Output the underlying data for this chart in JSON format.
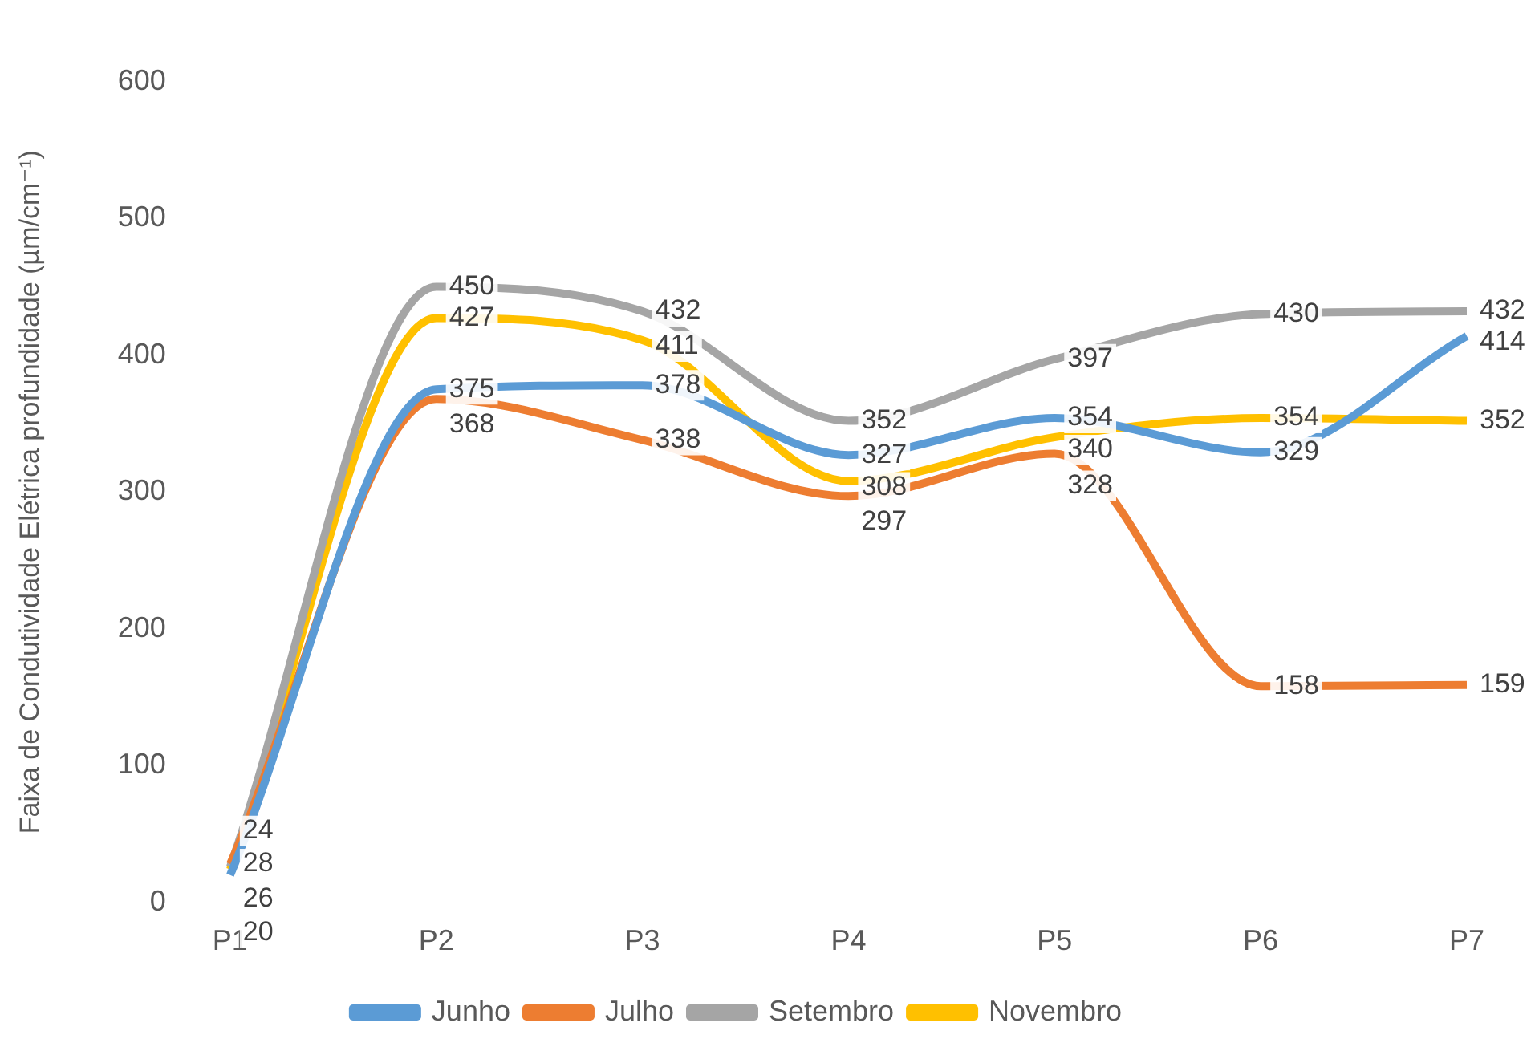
{
  "chart_data": {
    "type": "line",
    "ylabel": "Faixa de Condutividade Elétrica profundidade (µm/cm⁻¹)",
    "categories": [
      "P1",
      "P2",
      "P3",
      "P4",
      "P5",
      "P6",
      "P7"
    ],
    "series": [
      {
        "name": "Junho",
        "color": "#5b9bd5",
        "values": [
          20,
          375,
          378,
          327,
          354,
          329,
          414
        ]
      },
      {
        "name": "Julho",
        "color": "#ed7d31",
        "values": [
          28,
          368,
          338,
          297,
          328,
          158,
          159
        ]
      },
      {
        "name": "Setembro",
        "color": "#a5a5a5",
        "values": [
          26,
          450,
          432,
          352,
          397,
          430,
          432
        ]
      },
      {
        "name": "Novembro",
        "color": "#ffc000",
        "values": [
          24,
          427,
          411,
          308,
          340,
          354,
          352
        ]
      }
    ],
    "ylim": [
      0,
      600
    ],
    "yticks": [
      0,
      100,
      200,
      300,
      400,
      500,
      600
    ],
    "grid": false,
    "legend": "bottom",
    "data_labels": true,
    "marker": "none"
  }
}
